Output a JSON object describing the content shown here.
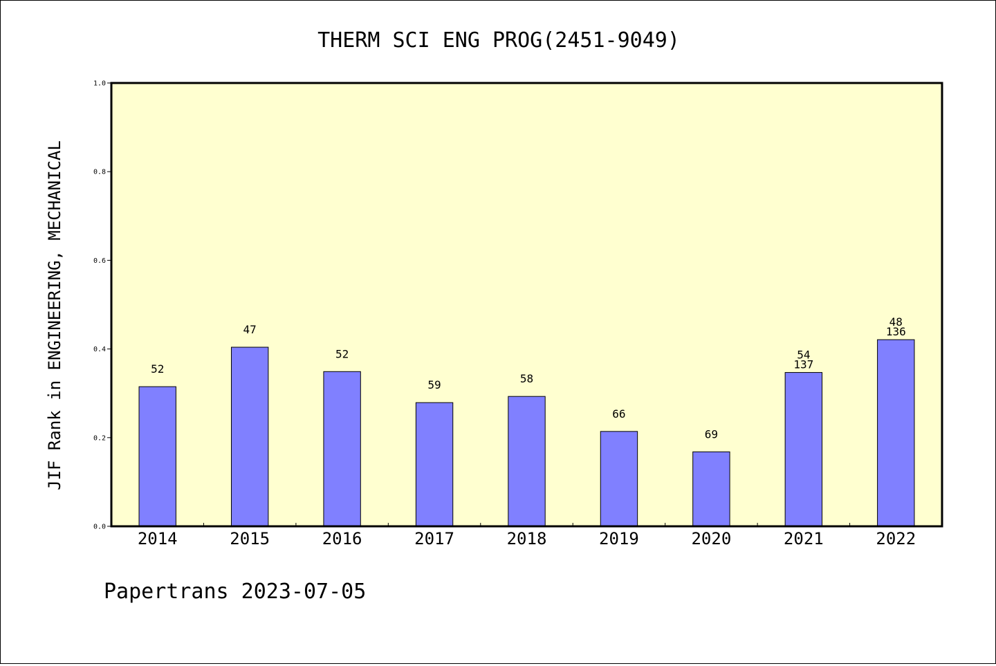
{
  "chart_data": {
    "type": "bar",
    "title": "THERM SCI ENG PROG(2451-9049)",
    "xlabel": "",
    "ylabel": "JIF Rank in ENGINEERING, MECHANICAL",
    "ylim": [
      0,
      1.0
    ],
    "yticks": [
      "0.0",
      "0.2",
      "0.4",
      "0.6",
      "0.8",
      "1.0"
    ],
    "grid": false,
    "legend": "none",
    "categories": [
      "2014",
      "2015",
      "2016",
      "2017",
      "2018",
      "2019",
      "2020",
      "2021",
      "2022"
    ],
    "values": [
      0.315,
      0.404,
      0.349,
      0.279,
      0.293,
      0.214,
      0.168,
      0.347,
      0.421
    ],
    "bar_labels": [
      [
        "52"
      ],
      [
        "47"
      ],
      [
        "52"
      ],
      [
        "59"
      ],
      [
        "58"
      ],
      [
        "66"
      ],
      [
        "69"
      ],
      [
        "54",
        "137"
      ],
      [
        "48",
        "136"
      ]
    ],
    "colors": {
      "bar_fill": "#8080ff",
      "bar_stroke": "#000000",
      "plot_background": "#ffffd0",
      "axis": "#000000"
    }
  },
  "footer": {
    "text": "Papertrans 2023-07-05"
  }
}
